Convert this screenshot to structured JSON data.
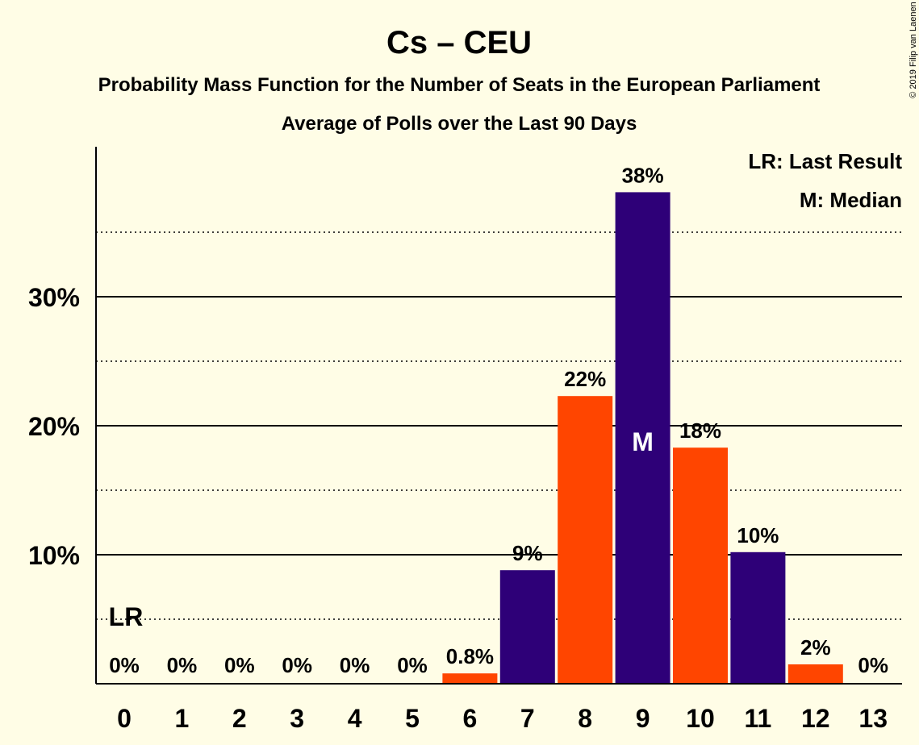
{
  "chart_data": {
    "type": "bar",
    "title": "Cs – CEU",
    "subtitle": "Probability Mass Function for the Number of Seats in the European Parliament",
    "subtitle2": "Average of Polls over the Last 90 Days",
    "copyright": "© 2019 Filip van Laenen",
    "categories": [
      "0",
      "1",
      "2",
      "3",
      "4",
      "5",
      "6",
      "7",
      "8",
      "9",
      "10",
      "11",
      "12",
      "13"
    ],
    "values": [
      0,
      0,
      0,
      0,
      0,
      0,
      0.8,
      8.8,
      22.3,
      38.1,
      18.3,
      10.2,
      1.5,
      0
    ],
    "bar_labels": [
      "0%",
      "0%",
      "0%",
      "0%",
      "0%",
      "0%",
      "0.8%",
      "9%",
      "22%",
      "38%",
      "18%",
      "10%",
      "2%",
      "0%"
    ],
    "bar_colors": [
      "#FF4500",
      "#2E0078",
      "#FF4500",
      "#2E0078",
      "#FF4500",
      "#2E0078",
      "#FF4500",
      "#2E0078",
      "#FF4500",
      "#2E0078",
      "#FF4500",
      "#2E0078",
      "#FF4500",
      "#2E0078"
    ],
    "ylim": [
      0,
      40
    ],
    "yticks": [
      10,
      20,
      30
    ],
    "ytick_labels": [
      "10%",
      "20%",
      "30%"
    ],
    "minor_gridlines": [
      5,
      15,
      25,
      35
    ],
    "last_result_category": "0",
    "last_result_marker": "LR",
    "median_category": "9",
    "median_marker": "M",
    "legend": [
      "LR: Last Result",
      "M: Median"
    ],
    "legend_position": "top-right",
    "colors": {
      "background": "#FFFDE6",
      "orange": "#FF4500",
      "purple": "#2E0078"
    }
  }
}
